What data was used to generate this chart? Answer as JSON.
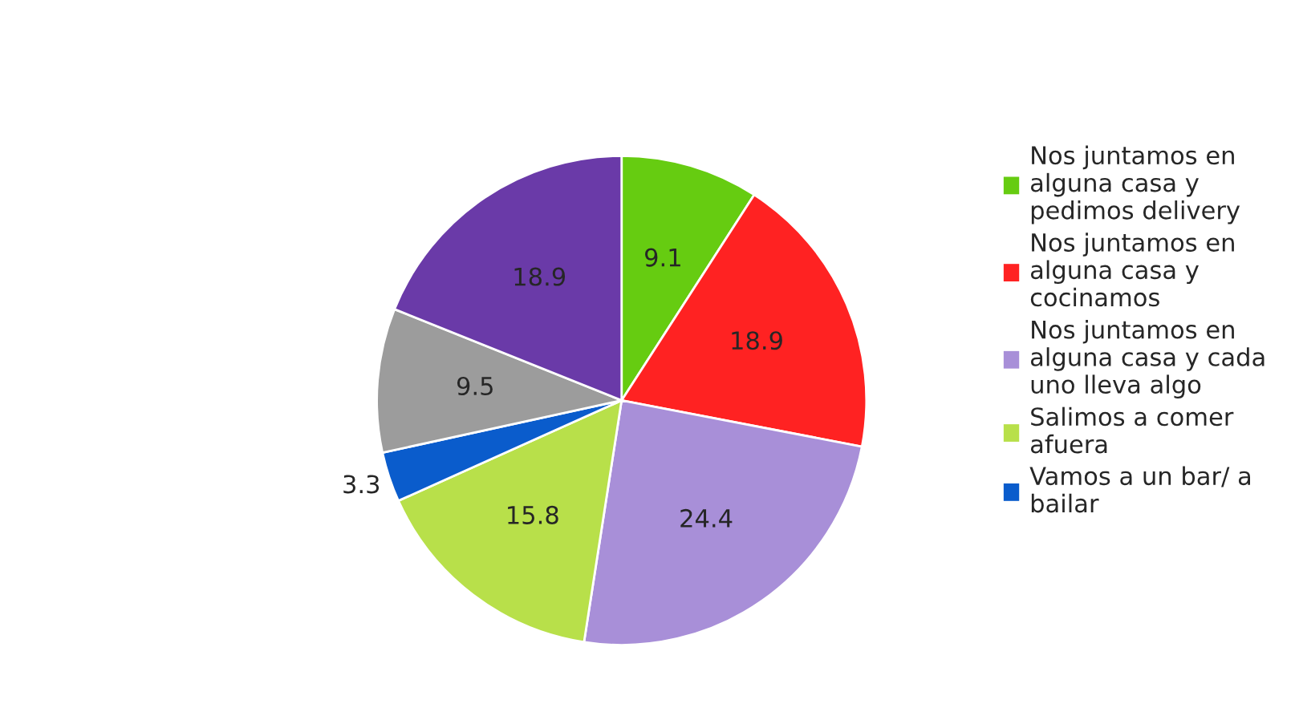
{
  "chart_data": {
    "type": "pie",
    "categories": [
      "Nos juntamos en alguna casa y pedimos delivery",
      "Nos juntamos en alguna casa y cocinamos",
      "Nos juntamos en alguna casa y cada uno lleva algo",
      "Salimos a comer afuera",
      "Vamos a un bar/ a bailar",
      null,
      null
    ],
    "values": [
      9.1,
      18.9,
      24.4,
      15.8,
      3.3,
      9.5,
      18.9
    ],
    "colors": [
      "#66cc11",
      "#ff2222",
      "#a88fd8",
      "#b8e04a",
      "#0a5ccc",
      "#9c9c9c",
      "#6a3aa8"
    ],
    "data_labels": true,
    "legend": "right"
  }
}
